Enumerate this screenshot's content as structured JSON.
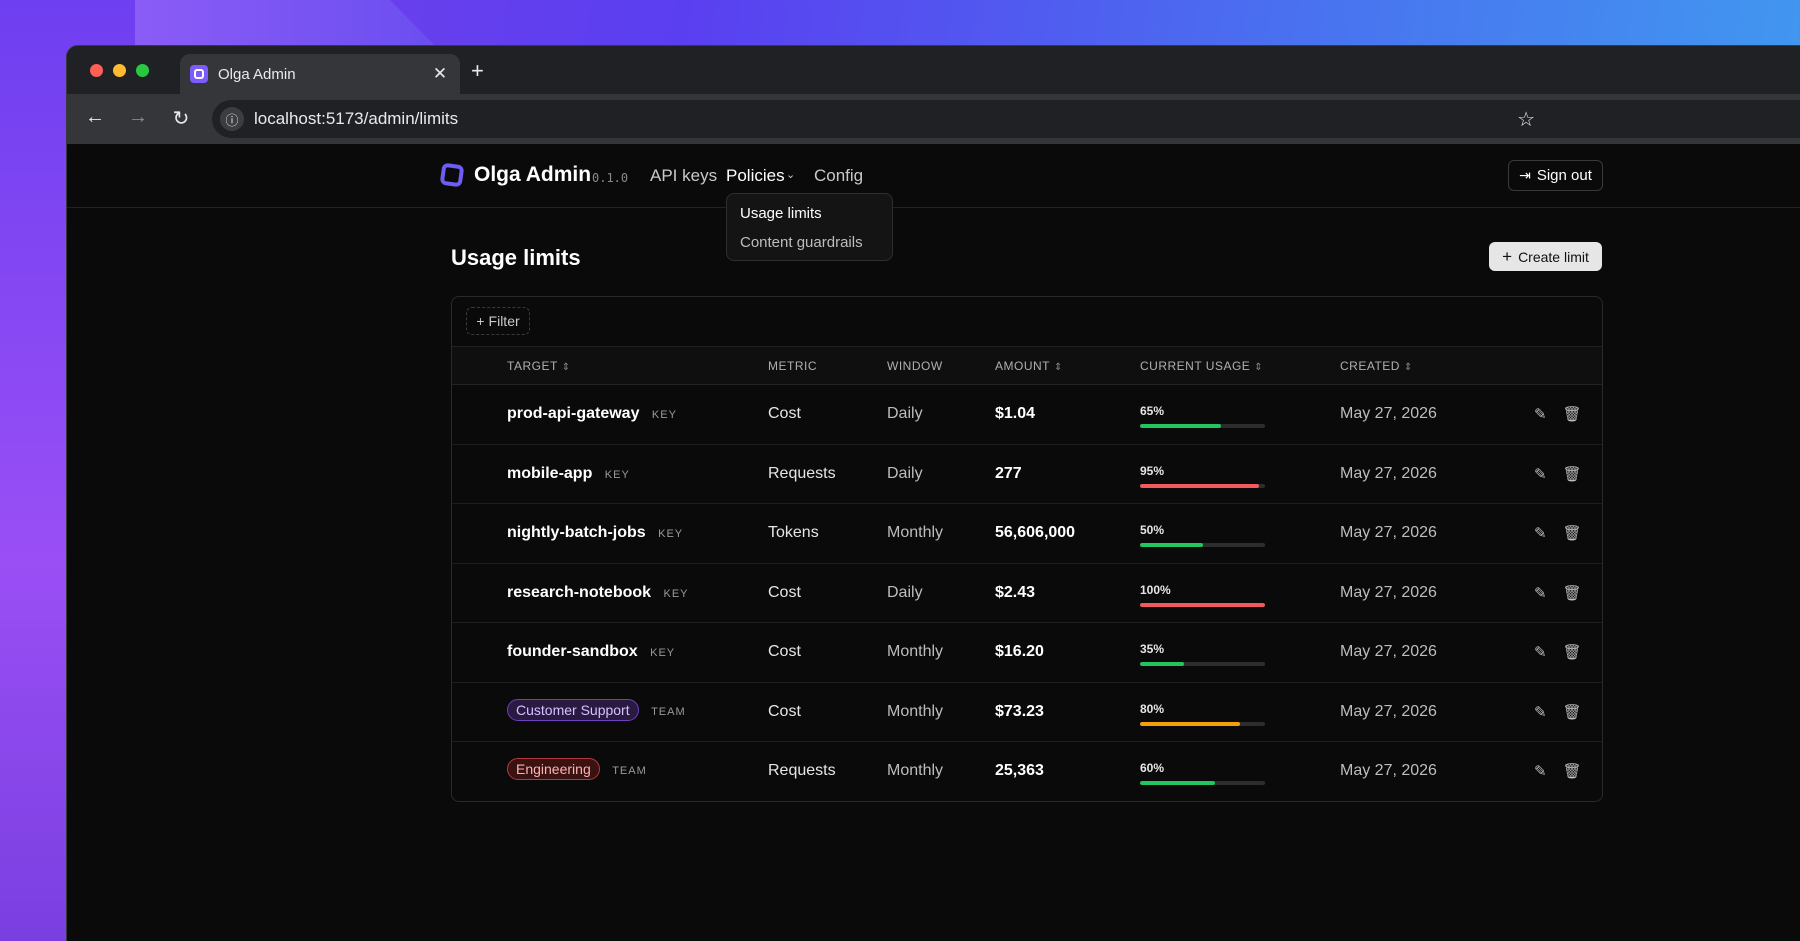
{
  "browser": {
    "tab_title": "Olga Admin",
    "url": "localhost:5173/admin/limits",
    "tab_close": "✕",
    "new_tab": "+"
  },
  "app": {
    "brand": "Olga Admin",
    "version": "0.1.0",
    "nav": {
      "api_keys": "API keys",
      "policies": "Policies",
      "config": "Config"
    },
    "sign_out": "Sign out",
    "dropdown": [
      "Usage limits",
      "Content guardrails"
    ]
  },
  "page": {
    "title": "Usage limits",
    "create_button": "Create limit",
    "filter_button": "Filter"
  },
  "table": {
    "columns": {
      "target": "TARGET",
      "metric": "METRIC",
      "window": "WINDOW",
      "amount": "AMOUNT",
      "usage": "CURRENT USAGE",
      "created": "CREATED"
    },
    "rows": [
      {
        "target": "prod-api-gateway",
        "kind": "KEY",
        "metric": "Cost",
        "window": "Daily",
        "amount": "$1.04",
        "usage_pct": "65%",
        "usage": 0.65,
        "usage_color": "#22c55e",
        "created": "May 27, 2026"
      },
      {
        "target": "mobile-app",
        "kind": "KEY",
        "metric": "Requests",
        "window": "Daily",
        "amount": "277",
        "usage_pct": "95%",
        "usage": 0.95,
        "usage_color": "#f05a5a",
        "created": "May 27, 2026"
      },
      {
        "target": "nightly-batch-jobs",
        "kind": "KEY",
        "metric": "Tokens",
        "window": "Monthly",
        "amount": "56,606,000",
        "usage_pct": "50%",
        "usage": 0.5,
        "usage_color": "#22c55e",
        "created": "May 27, 2026"
      },
      {
        "target": "research-notebook",
        "kind": "KEY",
        "metric": "Cost",
        "window": "Daily",
        "amount": "$2.43",
        "usage_pct": "100%",
        "usage": 1.0,
        "usage_color": "#f05a5a",
        "created": "May 27, 2026"
      },
      {
        "target": "founder-sandbox",
        "kind": "KEY",
        "metric": "Cost",
        "window": "Monthly",
        "amount": "$16.20",
        "usage_pct": "35%",
        "usage": 0.35,
        "usage_color": "#22c55e",
        "created": "May 27, 2026"
      },
      {
        "target": "Customer Support",
        "kind": "TEAM",
        "metric": "Cost",
        "window": "Monthly",
        "amount": "$73.23",
        "usage_pct": "80%",
        "usage": 0.8,
        "usage_color": "#f59e0b",
        "created": "May 27, 2026"
      },
      {
        "target": "Engineering",
        "kind": "TEAM",
        "metric": "Requests",
        "window": "Monthly",
        "amount": "25,363",
        "usage_pct": "60%",
        "usage": 0.6,
        "usage_color": "#22c55e",
        "created": "May 27, 2026"
      }
    ]
  },
  "colors": {
    "accent": "#6d5cf5",
    "usage_ok": "#22c55e",
    "usage_warn": "#f59e0b",
    "usage_high": "#f05a5a"
  },
  "icons": {
    "back": "arrow-left-icon",
    "forward": "arrow-right-icon",
    "reload": "reload-icon",
    "info": "info-icon",
    "bookmark": "star-icon",
    "sign_out": "sign-out-icon",
    "edit": "pencil-icon",
    "delete": "trash-icon",
    "sort": "sort-icon",
    "plus": "plus-icon",
    "chevron": "chevron-down-icon"
  }
}
